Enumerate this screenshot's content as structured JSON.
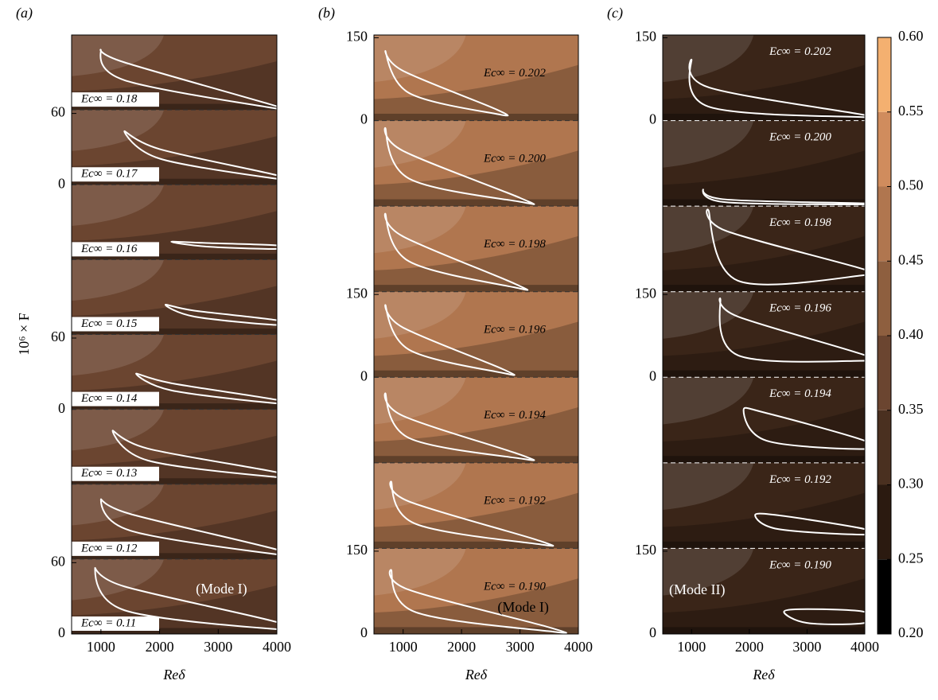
{
  "chart_data": [
    {
      "type": "contour",
      "panel_label": "(a)",
      "xlabel": "Reδ",
      "ylabel": "10⁶ × F",
      "xlim": [
        500,
        4000
      ],
      "xticks": [
        1000,
        2000,
        3000,
        4000
      ],
      "ylim": [
        0,
        63
      ],
      "background": "#6b4530",
      "curve_color": "#ffffff",
      "label_style": "boxed",
      "annotation": "(Mode I)",
      "subpanels": [
        {
          "label": "Ec∞ = 0.18",
          "curve": {
            "x": [
              1000,
              1400,
              4000,
              4000,
              1400
            ],
            "y": [
              50,
              40,
              3,
              1,
              25
            ]
          }
        },
        {
          "label": "Ec∞ = 0.17",
          "yticks": [
            0,
            60
          ],
          "curve": {
            "x": [
              1400,
              2000,
              4000,
              4000,
              2000
            ],
            "y": [
              45,
              30,
              8,
              5,
              22
            ]
          }
        },
        {
          "label": "Ec∞ = 0.16",
          "curve": {
            "x": [
              2200,
              2800,
              4000,
              4000,
              2800
            ],
            "y": [
              15,
              14,
              12,
              9,
              11
            ]
          }
        },
        {
          "label": "Ec∞ = 0.15",
          "curve": {
            "x": [
              2100,
              2600,
              4000,
              4000,
              2600
            ],
            "y": [
              25,
              20,
              12,
              8,
              15
            ]
          }
        },
        {
          "label": "Ec∞ = 0.14",
          "yticks": [
            0,
            60
          ],
          "curve": {
            "x": [
              1600,
              2200,
              4000,
              4000,
              2200
            ],
            "y": [
              30,
              22,
              8,
              5,
              16
            ]
          }
        },
        {
          "label": "Ec∞ = 0.13",
          "curve": {
            "x": [
              1200,
              1800,
              4000,
              4000,
              1800
            ],
            "y": [
              45,
              30,
              10,
              6,
              20
            ]
          }
        },
        {
          "label": "Ec∞ = 0.12",
          "curve": {
            "x": [
              1000,
              1500,
              4000,
              4000,
              1500
            ],
            "y": [
              50,
              38,
              8,
              4,
              24
            ]
          }
        },
        {
          "label": "Ec∞ = 0.11",
          "yticks": [
            0,
            60
          ],
          "curve": {
            "x": [
              900,
              1400,
              4000,
              4000,
              1400
            ],
            "y": [
              55,
              40,
              10,
              4,
              20
            ]
          }
        }
      ]
    },
    {
      "type": "contour",
      "panel_label": "(b)",
      "xlabel": "Reδ",
      "xlim": [
        500,
        4000
      ],
      "xticks": [
        1000,
        2000,
        3000,
        4000
      ],
      "ylim": [
        0,
        155
      ],
      "background": "#b0764f",
      "curve_color": "#ffffff",
      "label_style": "dark",
      "annotation": "(Mode I)",
      "subpanels": [
        {
          "label": "Ec∞ = 0.202",
          "yticks": [
            0,
            150
          ],
          "curve": {
            "x": [
              700,
              1000,
              2600,
              2600,
              1100
            ],
            "y": [
              125,
              90,
              20,
              12,
              50
            ]
          }
        },
        {
          "label": "Ec∞ = 0.200",
          "curve": {
            "x": [
              700,
              1000,
              3000,
              3000,
              1100
            ],
            "y": [
              140,
              100,
              15,
              8,
              50
            ]
          }
        },
        {
          "label": "Ec∞ = 0.198",
          "curve": {
            "x": [
              700,
              1000,
              2900,
              2900,
              1100
            ],
            "y": [
              140,
              100,
              15,
              8,
              55
            ]
          }
        },
        {
          "label": "Ec∞ = 0.196",
          "yticks": [
            0,
            150
          ],
          "curve": {
            "x": [
              700,
              1000,
              2700,
              2700,
              1100
            ],
            "y": [
              130,
              90,
              15,
              8,
              50
            ]
          }
        },
        {
          "label": "Ec∞ = 0.194",
          "curve": {
            "x": [
              700,
              1000,
              3000,
              3000,
              1100
            ],
            "y": [
              125,
              85,
              15,
              8,
              45
            ]
          }
        },
        {
          "label": "Ec∞ = 0.192",
          "curve": {
            "x": [
              800,
              1100,
              3300,
              3300,
              1200
            ],
            "y": [
              120,
              85,
              15,
              8,
              45
            ]
          }
        },
        {
          "label": "Ec∞ = 0.190",
          "yticks": [
            0,
            150
          ],
          "curve": {
            "x": [
              800,
              1100,
              3500,
              3500,
              1200
            ],
            "y": [
              115,
              80,
              12,
              5,
              40
            ]
          }
        }
      ]
    },
    {
      "type": "contour",
      "panel_label": "(c)",
      "xlabel": "Reδ",
      "xlim": [
        500,
        4000
      ],
      "xticks": [
        1000,
        2000,
        3000,
        4000
      ],
      "ylim": [
        0,
        155
      ],
      "background": "#3a2518",
      "curve_color": "#ffffff",
      "label_style": "light",
      "annotation": "(Mode II)",
      "subpanels": [
        {
          "label": "Ec∞ = 0.202",
          "yticks": [
            0,
            150
          ],
          "curve": {
            "x": [
              1000,
              1300,
              4000,
              4000,
              1300
            ],
            "y": [
              110,
              60,
              10,
              6,
              25
            ]
          }
        },
        {
          "label": "Ec∞ = 0.200",
          "curve": {
            "x": [
              1200,
              1600,
              4000,
              4000,
              1600
            ],
            "y": [
              30,
              12,
              5,
              3,
              7
            ]
          }
        },
        {
          "label": "Ec∞ = 0.198",
          "curve": {
            "x": [
              1300,
              1600,
              4000,
              4000,
              1800
            ],
            "y": [
              145,
              110,
              40,
              30,
              20
            ]
          }
        },
        {
          "label": "Ec∞ = 0.196",
          "yticks": [
            0,
            150
          ],
          "curve": {
            "x": [
              1500,
              1800,
              4000,
              4000,
              1800
            ],
            "y": [
              140,
              110,
              40,
              30,
              40
            ]
          }
        },
        {
          "label": "Ec∞ = 0.194",
          "curve": {
            "x": [
              1900,
              2300,
              4000,
              4000,
              2300
            ],
            "y": [
              95,
              90,
              40,
              25,
              40
            ]
          }
        },
        {
          "label": "Ec∞ = 0.192",
          "curve": {
            "x": [
              2100,
              2500,
              4000,
              4000,
              2500
            ],
            "y": [
              60,
              60,
              35,
              25,
              35
            ]
          }
        },
        {
          "label": "Ec∞ = 0.190",
          "yticks": [
            0,
            150
          ],
          "curve": {
            "x": [
              2600,
              3000,
              4000,
              4000,
              3000
            ],
            "y": [
              40,
              45,
              40,
              20,
              20
            ]
          }
        }
      ]
    },
    {
      "type": "colorbar",
      "ylim": [
        0.2,
        0.6
      ],
      "yticks": [
        {
          "value": 0.2,
          "label": "0.20"
        },
        {
          "value": 0.25,
          "label": "0.25"
        },
        {
          "value": 0.3,
          "label": "0.30"
        },
        {
          "value": 0.35,
          "label": "0.35"
        },
        {
          "value": 0.4,
          "label": "0.40"
        },
        {
          "value": 0.45,
          "label": "0.45"
        },
        {
          "value": 0.5,
          "label": "0.50"
        },
        {
          "value": 0.55,
          "label": "0.55"
        },
        {
          "value": 0.6,
          "label": "0.60"
        }
      ],
      "colors": [
        "#000000",
        "#2b1a10",
        "#4a3020",
        "#6b4530",
        "#8e5f3f",
        "#b0764f",
        "#d08c5d",
        "#f4b070"
      ]
    }
  ]
}
